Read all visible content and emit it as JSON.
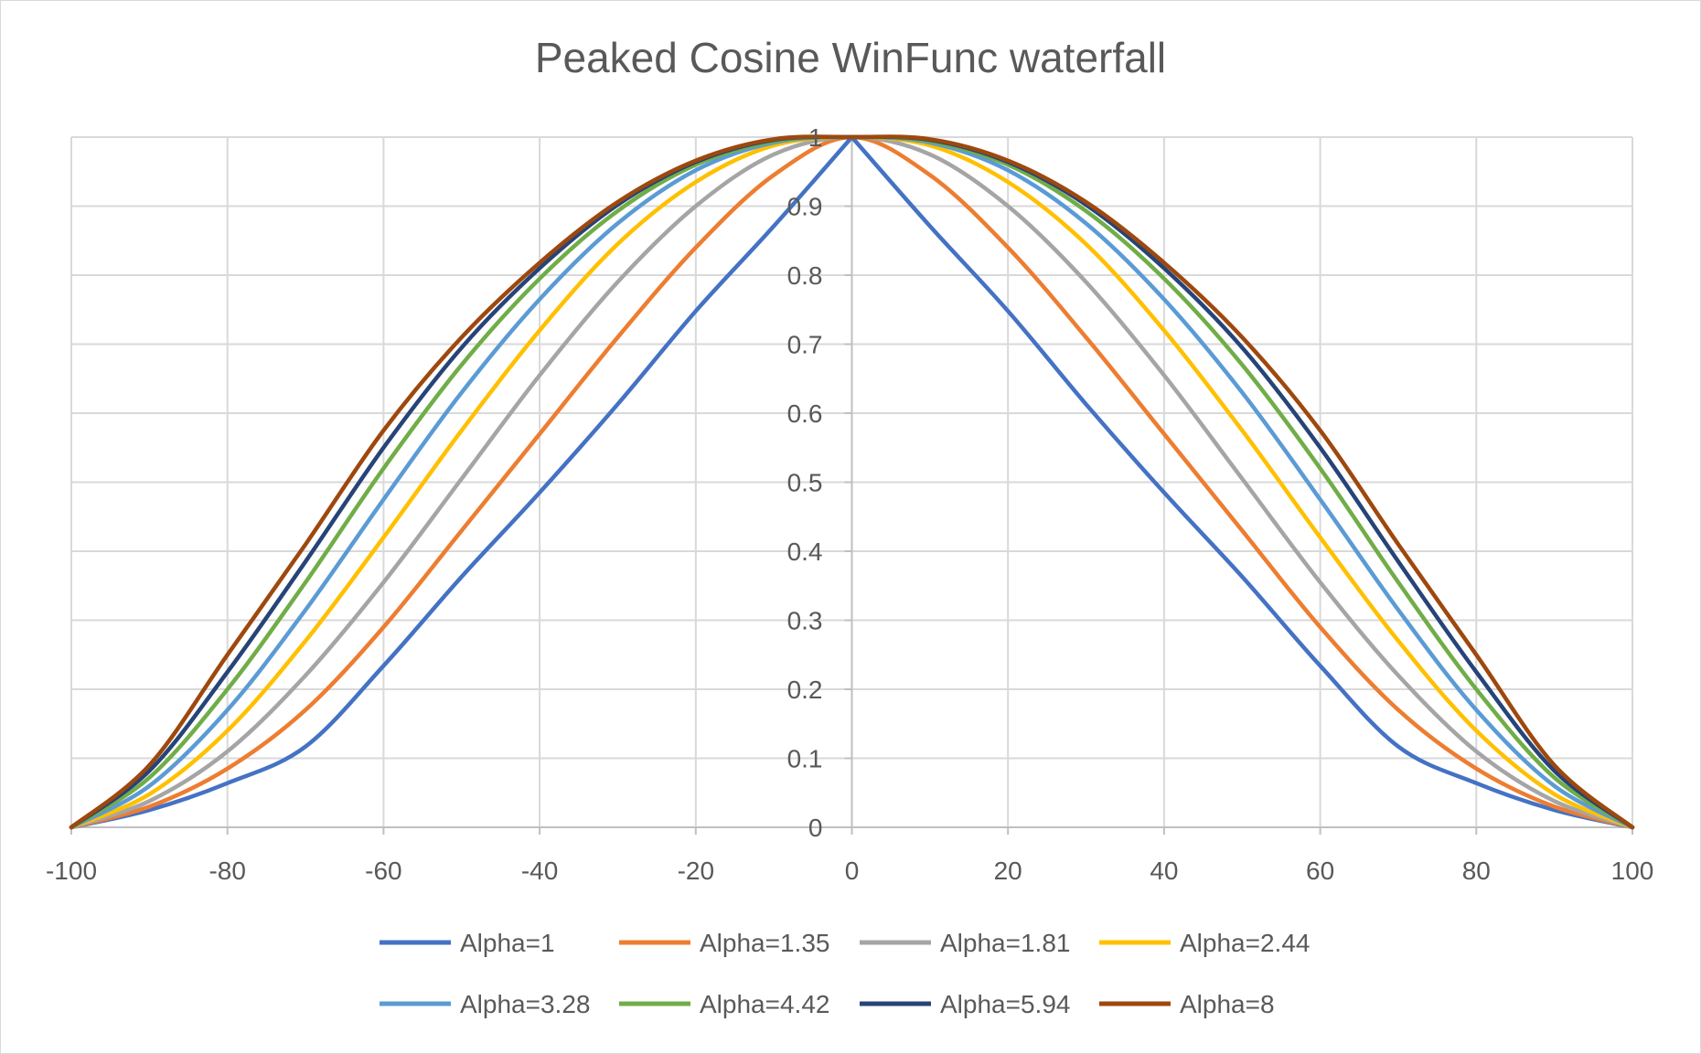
{
  "chart_data": {
    "type": "line",
    "title": "Peaked Cosine WinFunc waterfall",
    "xlabel": "",
    "ylabel": "",
    "xlim": [
      -100,
      100
    ],
    "ylim": [
      0,
      1
    ],
    "x_ticks": [
      -100,
      -80,
      -60,
      -40,
      -20,
      0,
      20,
      40,
      60,
      80,
      100
    ],
    "y_ticks": [
      0,
      0.1,
      0.2,
      0.3,
      0.4,
      0.5,
      0.6,
      0.7,
      0.8,
      0.9,
      1
    ],
    "x_tick_labels": [
      "-100",
      "-80",
      "-60",
      "-40",
      "-20",
      "0",
      "20",
      "40",
      "60",
      "80",
      "100"
    ],
    "y_tick_labels": [
      "0",
      "0.1",
      "0.2",
      "0.3",
      "0.4",
      "0.5",
      "0.6",
      "0.7",
      "0.8",
      "0.9",
      "1"
    ],
    "grid": true,
    "legend_position": "bottom",
    "x": [
      -100,
      -90,
      -80,
      -70,
      -60,
      -50,
      -40,
      -30,
      -20,
      -10,
      0,
      10,
      20,
      30,
      40,
      50,
      60,
      70,
      80,
      90,
      100
    ],
    "series": [
      {
        "name": "Alpha=1",
        "color": "#4472C4",
        "values": [
          0,
          0.025,
          0.064,
          0.117,
          0.234,
          0.363,
          0.485,
          0.613,
          0.748,
          0.871,
          1,
          0.871,
          0.748,
          0.613,
          0.485,
          0.363,
          0.234,
          0.117,
          0.064,
          0.025,
          0
        ]
      },
      {
        "name": "Alpha=1.35",
        "color": "#ED7D31",
        "values": [
          0,
          0.03,
          0.085,
          0.17,
          0.29,
          0.43,
          0.57,
          0.71,
          0.84,
          0.945,
          1,
          0.945,
          0.84,
          0.71,
          0.57,
          0.43,
          0.29,
          0.17,
          0.085,
          0.03,
          0
        ]
      },
      {
        "name": "Alpha=1.81",
        "color": "#A5A5A5",
        "values": [
          0,
          0.038,
          0.11,
          0.22,
          0.355,
          0.505,
          0.655,
          0.79,
          0.9,
          0.975,
          1,
          0.975,
          0.9,
          0.79,
          0.655,
          0.505,
          0.355,
          0.22,
          0.11,
          0.038,
          0
        ]
      },
      {
        "name": "Alpha=2.44",
        "color": "#FFC000",
        "values": [
          0,
          0.048,
          0.14,
          0.27,
          0.42,
          0.575,
          0.72,
          0.845,
          0.935,
          0.988,
          1,
          0.988,
          0.935,
          0.845,
          0.72,
          0.575,
          0.42,
          0.27,
          0.14,
          0.048,
          0
        ]
      },
      {
        "name": "Alpha=3.28",
        "color": "#5B9BD5",
        "values": [
          0,
          0.06,
          0.17,
          0.315,
          0.475,
          0.63,
          0.765,
          0.875,
          0.952,
          0.992,
          1,
          0.992,
          0.952,
          0.875,
          0.765,
          0.63,
          0.475,
          0.315,
          0.17,
          0.06,
          0
        ]
      },
      {
        "name": "Alpha=4.42",
        "color": "#70AD47",
        "values": [
          0,
          0.072,
          0.2,
          0.355,
          0.52,
          0.67,
          0.795,
          0.893,
          0.96,
          0.994,
          1,
          0.994,
          0.96,
          0.893,
          0.795,
          0.67,
          0.52,
          0.355,
          0.2,
          0.072,
          0
        ]
      },
      {
        "name": "Alpha=5.94",
        "color": "#264478",
        "values": [
          0,
          0.082,
          0.225,
          0.385,
          0.55,
          0.695,
          0.81,
          0.902,
          0.964,
          0.996,
          1,
          0.996,
          0.964,
          0.902,
          0.81,
          0.695,
          0.55,
          0.385,
          0.225,
          0.082,
          0
        ]
      },
      {
        "name": "Alpha=8",
        "color": "#9E480E",
        "values": [
          0,
          0.09,
          0.25,
          0.41,
          0.575,
          0.71,
          0.818,
          0.906,
          0.966,
          0.997,
          1,
          0.997,
          0.966,
          0.906,
          0.818,
          0.71,
          0.575,
          0.41,
          0.25,
          0.09,
          0
        ]
      }
    ]
  }
}
